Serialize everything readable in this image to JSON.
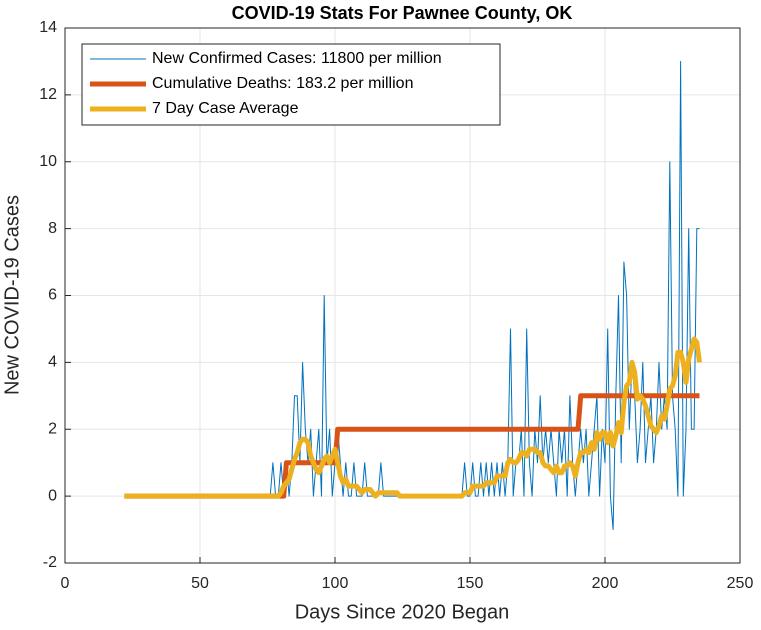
{
  "chart_data": {
    "type": "line",
    "title": "COVID-19 Stats For Pawnee County, OK",
    "xlabel": "Days Since 2020 Began",
    "ylabel": "New COVID-19 Cases",
    "xlim": [
      0,
      250
    ],
    "ylim": [
      -2,
      14
    ],
    "xticks": [
      0,
      50,
      100,
      150,
      200,
      250
    ],
    "yticks": [
      -2,
      0,
      2,
      4,
      6,
      8,
      10,
      12,
      14
    ],
    "grid": true,
    "legend": "upper left",
    "x": [
      22,
      23,
      24,
      25,
      26,
      27,
      28,
      29,
      30,
      31,
      32,
      33,
      34,
      35,
      36,
      37,
      38,
      39,
      40,
      41,
      42,
      43,
      44,
      45,
      46,
      47,
      48,
      49,
      50,
      51,
      52,
      53,
      54,
      55,
      56,
      57,
      58,
      59,
      60,
      61,
      62,
      63,
      64,
      65,
      66,
      67,
      68,
      69,
      70,
      71,
      72,
      73,
      74,
      75,
      76,
      77,
      78,
      79,
      80,
      81,
      82,
      83,
      84,
      85,
      86,
      87,
      88,
      89,
      90,
      91,
      92,
      93,
      94,
      95,
      96,
      97,
      98,
      99,
      100,
      101,
      102,
      103,
      104,
      105,
      106,
      107,
      108,
      109,
      110,
      111,
      112,
      113,
      114,
      115,
      116,
      117,
      118,
      119,
      120,
      121,
      122,
      123,
      124,
      125,
      126,
      127,
      128,
      129,
      130,
      131,
      132,
      133,
      134,
      135,
      136,
      137,
      138,
      139,
      140,
      141,
      142,
      143,
      144,
      145,
      146,
      147,
      148,
      149,
      150,
      151,
      152,
      153,
      154,
      155,
      156,
      157,
      158,
      159,
      160,
      161,
      162,
      163,
      164,
      165,
      166,
      167,
      168,
      169,
      170,
      171,
      172,
      173,
      174,
      175,
      176,
      177,
      178,
      179,
      180,
      181,
      182,
      183,
      184,
      185,
      186,
      187,
      188,
      189,
      190,
      191,
      192,
      193,
      194,
      195,
      196,
      197,
      198,
      199,
      200,
      201,
      202,
      203,
      204,
      205,
      206,
      207,
      208,
      209,
      210,
      211,
      212,
      213,
      214,
      215,
      216,
      217,
      218,
      219,
      220,
      221,
      222,
      223,
      224,
      225,
      226,
      227,
      228,
      229,
      230,
      231,
      232,
      233,
      234,
      235
    ],
    "series": [
      {
        "name": "New Confirmed Cases: 11800 per million",
        "color": "#0072bd",
        "linewidth": 1,
        "values": [
          0,
          0,
          0,
          0,
          0,
          0,
          0,
          0,
          0,
          0,
          0,
          0,
          0,
          0,
          0,
          0,
          0,
          0,
          0,
          0,
          0,
          0,
          0,
          0,
          0,
          0,
          0,
          0,
          0,
          0,
          0,
          0,
          0,
          0,
          0,
          0,
          0,
          0,
          0,
          0,
          0,
          0,
          0,
          0,
          0,
          0,
          0,
          0,
          0,
          0,
          0,
          0,
          0,
          0,
          0,
          1,
          0,
          0,
          1,
          0,
          1,
          0,
          1,
          3,
          3,
          1,
          4,
          2,
          1,
          2,
          0,
          1,
          2,
          0,
          6,
          1,
          2,
          0,
          1,
          2,
          1,
          0,
          1,
          0,
          0,
          1,
          0,
          0,
          0,
          1,
          0,
          0,
          0,
          0,
          0,
          1,
          0,
          0,
          0,
          0,
          0,
          0,
          0,
          0,
          0,
          0,
          0,
          0,
          0,
          0,
          0,
          0,
          0,
          0,
          0,
          0,
          0,
          0,
          0,
          0,
          0,
          0,
          0,
          0,
          0,
          0,
          1,
          0,
          0,
          1,
          0,
          0,
          1,
          0,
          1,
          0,
          1,
          0,
          1,
          0,
          1,
          0,
          1,
          5,
          0,
          1,
          1,
          2,
          0,
          5,
          1,
          0,
          2,
          1,
          3,
          1,
          2,
          1,
          2,
          1,
          0,
          2,
          1,
          2,
          0,
          3,
          1,
          0,
          1,
          2,
          1,
          2,
          0,
          1,
          2,
          3,
          0,
          2,
          1,
          5,
          0,
          -1,
          3,
          6,
          1,
          7,
          6,
          2,
          4,
          3,
          1,
          2,
          4,
          1,
          2,
          3,
          1,
          2,
          4,
          2,
          3,
          2,
          10,
          3,
          2,
          0,
          13,
          0,
          2,
          8,
          2,
          2,
          8,
          8
        ]
      },
      {
        "name": "Cumulative Deaths: 183.2 per million",
        "color": "#d95319",
        "linewidth": 5,
        "values": [
          0,
          0,
          0,
          0,
          0,
          0,
          0,
          0,
          0,
          0,
          0,
          0,
          0,
          0,
          0,
          0,
          0,
          0,
          0,
          0,
          0,
          0,
          0,
          0,
          0,
          0,
          0,
          0,
          0,
          0,
          0,
          0,
          0,
          0,
          0,
          0,
          0,
          0,
          0,
          0,
          0,
          0,
          0,
          0,
          0,
          0,
          0,
          0,
          0,
          0,
          0,
          0,
          0,
          0,
          0,
          0,
          0,
          0,
          0,
          0,
          1,
          1,
          1,
          1,
          1,
          1,
          1,
          1,
          1,
          1,
          1,
          1,
          1,
          1,
          1,
          1,
          1,
          1,
          1,
          2,
          2,
          2,
          2,
          2,
          2,
          2,
          2,
          2,
          2,
          2,
          2,
          2,
          2,
          2,
          2,
          2,
          2,
          2,
          2,
          2,
          2,
          2,
          2,
          2,
          2,
          2,
          2,
          2,
          2,
          2,
          2,
          2,
          2,
          2,
          2,
          2,
          2,
          2,
          2,
          2,
          2,
          2,
          2,
          2,
          2,
          2,
          2,
          2,
          2,
          2,
          2,
          2,
          2,
          2,
          2,
          2,
          2,
          2,
          2,
          2,
          2,
          2,
          2,
          2,
          2,
          2,
          2,
          2,
          2,
          2,
          2,
          2,
          2,
          2,
          2,
          2,
          2,
          2,
          2,
          2,
          2,
          2,
          2,
          2,
          2,
          2,
          2,
          2,
          2,
          3,
          3,
          3,
          3,
          3,
          3,
          3,
          3,
          3,
          3,
          3,
          3,
          3,
          3,
          3,
          3,
          3,
          3,
          3,
          3,
          3,
          3,
          3,
          3,
          3,
          3,
          3,
          3,
          3,
          3,
          3,
          3,
          3,
          3,
          3,
          3,
          3,
          3,
          3,
          3,
          3,
          3,
          3,
          3,
          3
        ]
      },
      {
        "name": "7 Day Case Average",
        "color": "#edb120",
        "linewidth": 5,
        "values": [
          0,
          0,
          0,
          0,
          0,
          0,
          0,
          0,
          0,
          0,
          0,
          0,
          0,
          0,
          0,
          0,
          0,
          0,
          0,
          0,
          0,
          0,
          0,
          0,
          0,
          0,
          0,
          0,
          0,
          0,
          0,
          0,
          0,
          0,
          0,
          0,
          0,
          0,
          0,
          0,
          0,
          0,
          0,
          0,
          0,
          0,
          0,
          0,
          0,
          0,
          0,
          0,
          0,
          0,
          0,
          0,
          0,
          0,
          0.1,
          0.3,
          0.4,
          0.5,
          0.8,
          1.1,
          1.3,
          1.6,
          1.7,
          1.7,
          1.6,
          1.2,
          1.0,
          0.8,
          0.7,
          0.9,
          1.1,
          1.2,
          1.0,
          1.2,
          1.4,
          1.0,
          0.6,
          0.4,
          0.5,
          0.3,
          0.3,
          0.3,
          0.3,
          0.2,
          0.1,
          0.2,
          0.2,
          0.2,
          0.1,
          0,
          0.1,
          0.1,
          0.1,
          0.1,
          0.1,
          0.1,
          0.1,
          0.1,
          0,
          0,
          0,
          0,
          0,
          0,
          0,
          0,
          0,
          0,
          0,
          0,
          0,
          0,
          0,
          0,
          0,
          0,
          0,
          0,
          0,
          0,
          0,
          0,
          0.1,
          0.1,
          0.1,
          0.3,
          0.3,
          0.3,
          0.3,
          0.3,
          0.4,
          0.4,
          0.4,
          0.4,
          0.6,
          0.6,
          0.6,
          0.6,
          1.0,
          1.1,
          1.0,
          1.0,
          1.1,
          1.3,
          1.3,
          1.2,
          1.4,
          1.4,
          1.4,
          1.3,
          1.3,
          1.0,
          0.9,
          0.9,
          0.8,
          0.7,
          0.9,
          0.7,
          0.7,
          0.9,
          0.9,
          1.0,
          0.9,
          0.6,
          1.0,
          1.3,
          1.3,
          1.4,
          1.3,
          1.6,
          1.4,
          1.9,
          1.7,
          1.9,
          1.9,
          1.6,
          1.9,
          1.5,
          1.8,
          2.2,
          1.9,
          2.8,
          3.3,
          3.4,
          4.0,
          3.7,
          2.9,
          3.0,
          2.9,
          2.7,
          2.4,
          2.1,
          2.0,
          1.9,
          2.1,
          2.4,
          2.3,
          2.7,
          3.2,
          3.3,
          3.6,
          4.3,
          4.3,
          4.0,
          3.4,
          4.1,
          4.4,
          4.7,
          4.6,
          4.0
        ]
      }
    ]
  }
}
